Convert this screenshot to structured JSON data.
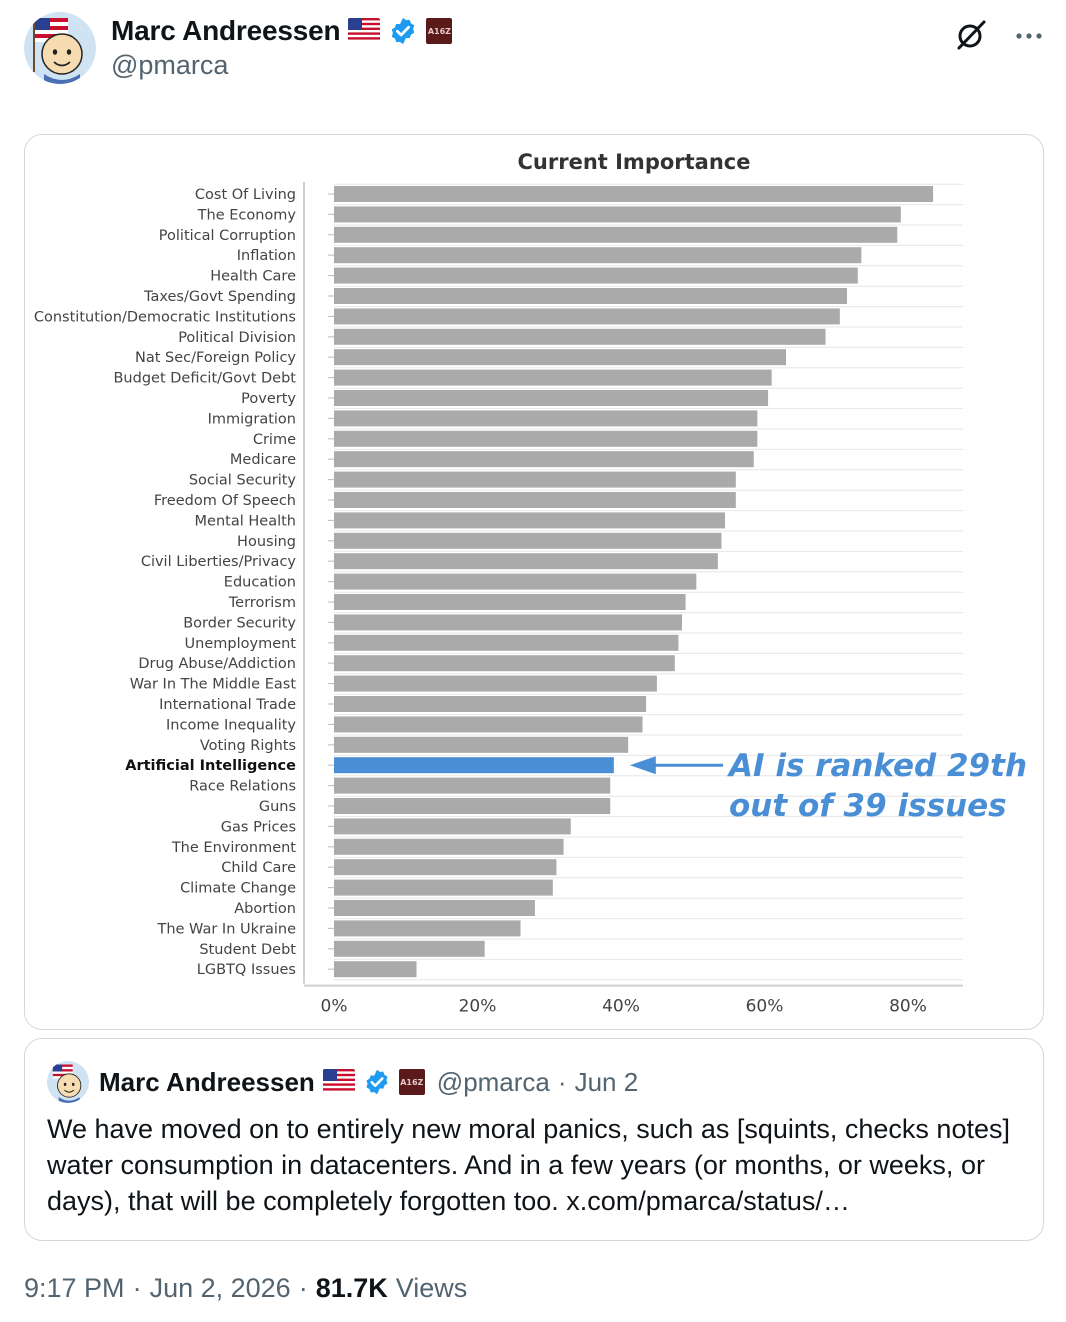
{
  "post": {
    "author_name": "Marc Andreessen",
    "handle": "@pmarca",
    "affiliation_badge": "A16Z",
    "timestamp": "9:17 PM",
    "date": "Jun 2, 2026",
    "separator": "·",
    "views_count": "81.7K",
    "views_label": "Views"
  },
  "quoted_post": {
    "author_name": "Marc Andreessen",
    "handle": "@pmarca",
    "separator": "·",
    "date": "Jun 2",
    "affiliation_badge": "A16Z",
    "text": "We have moved on to entirely new moral panics, such as [squints, checks notes] water consumption in datacenters. And in a few years (or months, or weeks, or days), that will be completely forgotten too. x.com/pmarca/status/…"
  },
  "icons": {
    "header": [
      "grok-icon",
      "more-icon"
    ],
    "badges": [
      "us-flag-icon",
      "verified-badge-icon",
      "affiliation-badge-icon"
    ]
  },
  "colors": {
    "bar": "#aaaaaa",
    "highlight": "#4a8fd6",
    "annotation": "#4a8fd6",
    "verified": "#1d9bf0",
    "affiliation": "#5a1a1a",
    "secondary_text": "#536471"
  },
  "chart_data": {
    "type": "bar",
    "orientation": "horizontal",
    "title": "Current Importance",
    "xlim": [
      0,
      90
    ],
    "xticks": [
      "0%",
      "20%",
      "40%",
      "60%",
      "80%"
    ],
    "xtick_values": [
      0,
      20,
      40,
      60,
      80
    ],
    "grid": "horizontal",
    "categories": [
      "Cost Of Living",
      "The Economy",
      "Political Corruption",
      "Inflation",
      "Health Care",
      "Taxes/Govt Spending",
      "Constitution/Democratic Institutions",
      "Political Division",
      "Nat Sec/Foreign Policy",
      "Budget Deficit/Govt Debt",
      "Poverty",
      "Immigration",
      "Crime",
      "Medicare",
      "Social Security",
      "Freedom Of Speech",
      "Mental Health",
      "Housing",
      "Civil Liberties/Privacy",
      "Education",
      "Terrorism",
      "Border Security",
      "Unemployment",
      "Drug Abuse/Addiction",
      "War In The Middle East",
      "International Trade",
      "Income Inequality",
      "Voting Rights",
      "Artificial Intelligence",
      "Race Relations",
      "Guns",
      "Gas Prices",
      "The Environment",
      "Child Care",
      "Climate Change",
      "Abortion",
      "The War In Ukraine",
      "Student Debt",
      "LGBTQ Issues"
    ],
    "values": [
      83.5,
      79.0,
      78.5,
      73.5,
      73.0,
      71.5,
      70.5,
      68.5,
      63.0,
      61.0,
      60.5,
      59.0,
      59.0,
      58.5,
      56.0,
      56.0,
      54.5,
      54.0,
      53.5,
      50.5,
      49.0,
      48.5,
      48.0,
      47.5,
      45.0,
      43.5,
      43.0,
      41.0,
      39.0,
      38.5,
      38.5,
      33.0,
      32.0,
      31.0,
      30.5,
      28.0,
      26.0,
      21.0,
      11.5
    ],
    "highlight_category": "Artificial Intelligence",
    "annotation": {
      "lines": [
        "AI is ranked 29th",
        "out of 39 issues"
      ],
      "target": "Artificial Intelligence"
    }
  }
}
